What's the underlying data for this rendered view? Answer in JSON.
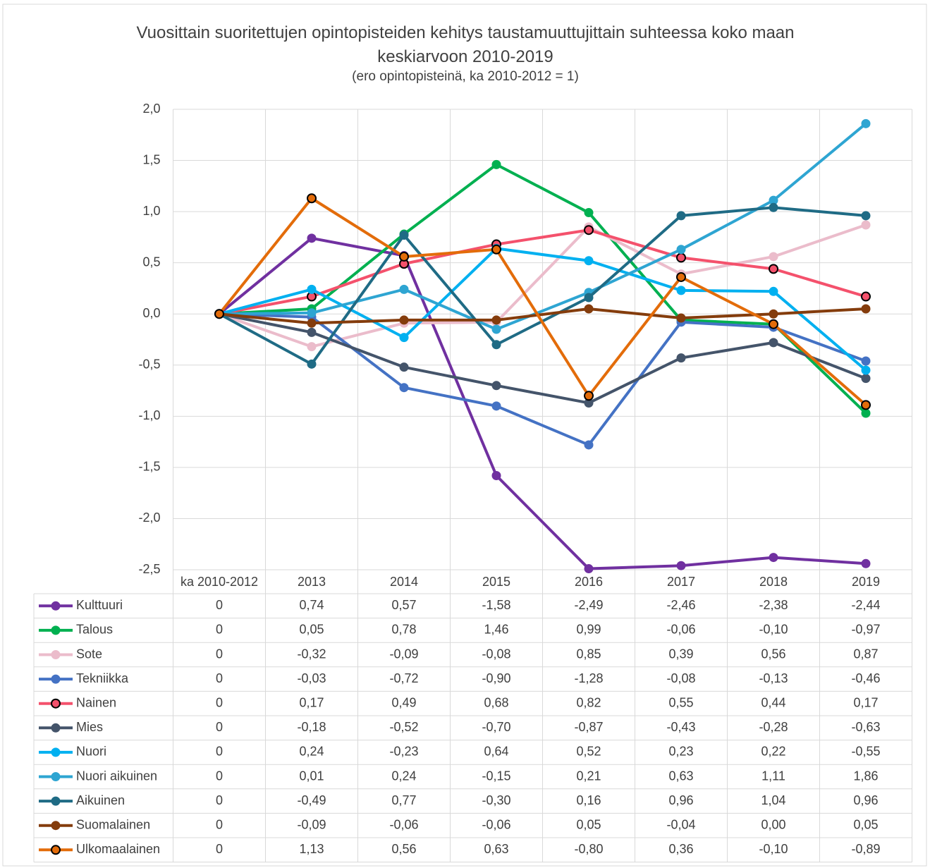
{
  "chart_data": {
    "type": "line",
    "title": "Vuosittain suoritettujen opintopisteiden kehitys taustamuuttujittain suhteessa koko maan keskiarvoon 2010-2019",
    "subtitle": "(ero opintopisteinä, ka 2010-2012 = 1)",
    "categories": [
      "ka 2010-2012",
      "2013",
      "2014",
      "2015",
      "2016",
      "2017",
      "2018",
      "2019"
    ],
    "ylim": [
      -2.5,
      2.0
    ],
    "yticks": [
      {
        "value": -2.5,
        "label": "-2,5"
      },
      {
        "value": -2.0,
        "label": "-2,0"
      },
      {
        "value": -1.5,
        "label": "-1,5"
      },
      {
        "value": -1.0,
        "label": "-1,0"
      },
      {
        "value": -0.5,
        "label": "-0,5"
      },
      {
        "value": 0,
        "label": "0,0"
      },
      {
        "value": 0.5,
        "label": "0,5"
      },
      {
        "value": 1.0,
        "label": "1,0"
      },
      {
        "value": 1.5,
        "label": "1,5"
      },
      {
        "value": 2.0,
        "label": "2,0"
      }
    ],
    "grid": true,
    "data_table": true,
    "series": [
      {
        "name": "Kulttuuri",
        "color": "#7030a0",
        "values": [
          0,
          0.74,
          0.57,
          -1.58,
          -2.49,
          -2.46,
          -2.38,
          -2.44
        ],
        "value_labels": [
          "0",
          "0,74",
          "0,57",
          "-1,58",
          "-2,49",
          "-2,46",
          "-2,38",
          "-2,44"
        ]
      },
      {
        "name": "Talous",
        "color": "#00b050",
        "values": [
          0,
          0.05,
          0.78,
          1.46,
          0.99,
          -0.06,
          -0.1,
          -0.97
        ],
        "value_labels": [
          "0",
          "0,05",
          "0,78",
          "1,46",
          "0,99",
          "-0,06",
          "-0,10",
          "-0,97"
        ]
      },
      {
        "name": "Sote",
        "color": "#ebbccb",
        "values": [
          0,
          -0.32,
          -0.09,
          -0.08,
          0.85,
          0.39,
          0.56,
          0.87
        ],
        "value_labels": [
          "0",
          "-0,32",
          "-0,09",
          "-0,08",
          "0,85",
          "0,39",
          "0,56",
          "0,87"
        ]
      },
      {
        "name": "Tekniikka",
        "color": "#4472c4",
        "values": [
          0,
          -0.03,
          -0.72,
          -0.9,
          -1.28,
          -0.08,
          -0.13,
          -0.46
        ],
        "value_labels": [
          "0",
          "-0,03",
          "-0,72",
          "-0,90",
          "-1,28",
          "-0,08",
          "-0,13",
          "-0,46"
        ]
      },
      {
        "name": "Nainen",
        "color": "#f4516c",
        "marker_edge": "#000000",
        "values": [
          0,
          0.17,
          0.49,
          0.68,
          0.82,
          0.55,
          0.44,
          0.17
        ],
        "value_labels": [
          "0",
          "0,17",
          "0,49",
          "0,68",
          "0,82",
          "0,55",
          "0,44",
          "0,17"
        ]
      },
      {
        "name": "Mies",
        "color": "#44546a",
        "values": [
          0,
          -0.18,
          -0.52,
          -0.7,
          -0.87,
          -0.43,
          -0.28,
          -0.63
        ],
        "value_labels": [
          "0",
          "-0,18",
          "-0,52",
          "-0,70",
          "-0,87",
          "-0,43",
          "-0,28",
          "-0,63"
        ]
      },
      {
        "name": "Nuori",
        "color": "#00b0f0",
        "values": [
          0,
          0.24,
          -0.23,
          0.64,
          0.52,
          0.23,
          0.22,
          -0.55
        ],
        "value_labels": [
          "0",
          "0,24",
          "-0,23",
          "0,64",
          "0,52",
          "0,23",
          "0,22",
          "-0,55"
        ]
      },
      {
        "name": "Nuori aikuinen",
        "color": "#2ea5d2",
        "values": [
          0,
          0.01,
          0.24,
          -0.15,
          0.21,
          0.63,
          1.11,
          1.86
        ],
        "value_labels": [
          "0",
          "0,01",
          "0,24",
          "-0,15",
          "0,21",
          "0,63",
          "1,11",
          "1,86"
        ]
      },
      {
        "name": "Aikuinen",
        "color": "#1f6b85",
        "values": [
          0,
          -0.49,
          0.77,
          -0.3,
          0.16,
          0.96,
          1.04,
          0.96
        ],
        "value_labels": [
          "0",
          "-0,49",
          "0,77",
          "-0,30",
          "0,16",
          "0,96",
          "1,04",
          "0,96"
        ]
      },
      {
        "name": "Suomalainen",
        "color": "#843c0c",
        "values": [
          0,
          -0.09,
          -0.06,
          -0.06,
          0.05,
          -0.04,
          0.0,
          0.05
        ],
        "value_labels": [
          "0",
          "-0,09",
          "-0,06",
          "-0,06",
          "0,05",
          "-0,04",
          "0,00",
          "0,05"
        ]
      },
      {
        "name": "Ulkomaalainen",
        "color": "#e36c0a",
        "marker_edge": "#000000",
        "values": [
          0,
          1.13,
          0.56,
          0.63,
          -0.8,
          0.36,
          -0.1,
          -0.89
        ],
        "value_labels": [
          "0",
          "1,13",
          "0,56",
          "0,63",
          "-0,80",
          "0,36",
          "-0,10",
          "-0,89"
        ]
      }
    ]
  }
}
